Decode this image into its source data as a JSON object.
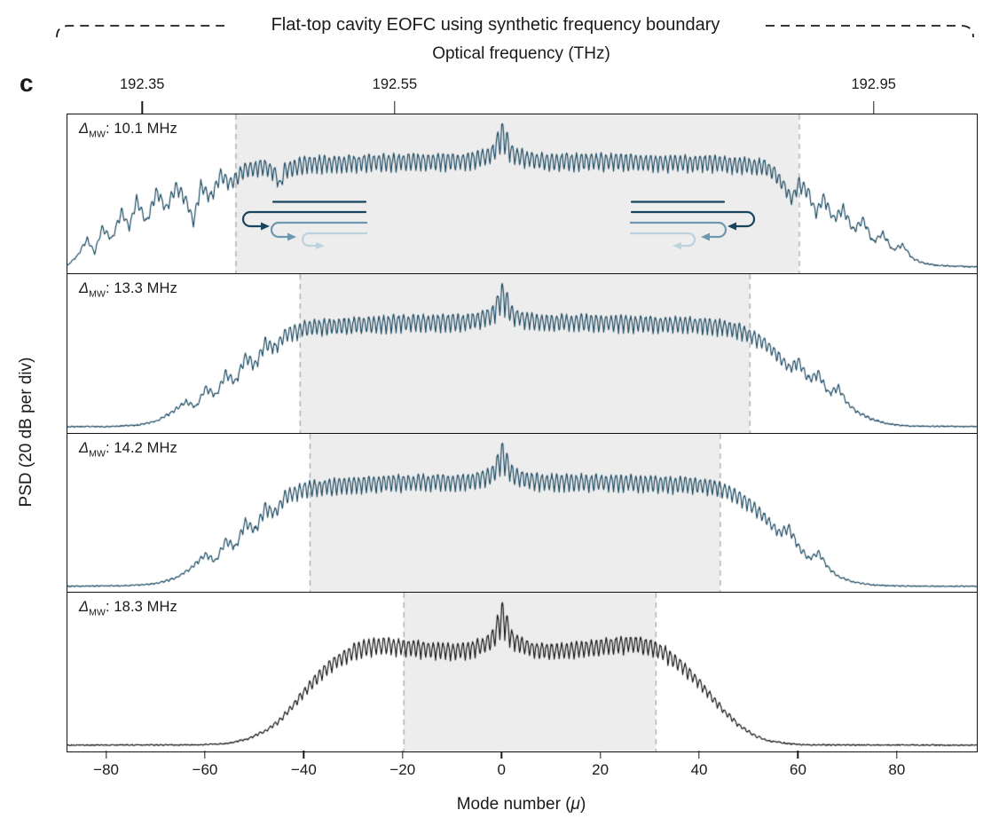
{
  "figure": {
    "panel_letter": "c",
    "brace_label": "Flat-top cavity EOFC using synthetic frequency boundary"
  },
  "chart_data": {
    "type": "line",
    "title": "Flat-top cavity EOFC using synthetic frequency boundary",
    "ylabel": "PSD (20 dB per div)",
    "xlabel": "Mode number (μ)",
    "xlabel_parts": {
      "prefix": "Mode number (",
      "symbol": "μ",
      "suffix": ")"
    },
    "x_range_mu": [
      -88,
      96
    ],
    "top_axis": {
      "label": "Optical frequency (THz)",
      "ticks": [
        {
          "label": "192.35",
          "mu": -72.7
        },
        {
          "label": "192.55",
          "mu": -21.6
        },
        {
          "label": "192.95",
          "mu": 75.3
        }
      ]
    },
    "bottom_axis": {
      "ticks": [
        {
          "label": "−80",
          "mu": -80
        },
        {
          "label": "−60",
          "mu": -60
        },
        {
          "label": "−40",
          "mu": -40
        },
        {
          "label": "−20",
          "mu": -20
        },
        {
          "label": "0",
          "mu": 0
        },
        {
          "label": "20",
          "mu": 20
        },
        {
          "label": "40",
          "mu": 40
        },
        {
          "label": "60",
          "mu": 60
        },
        {
          "label": "80",
          "mu": 80
        }
      ]
    },
    "panels": [
      {
        "label": "ΔMW: 10.1 MHz",
        "delta_symbol": "Δ",
        "delta_subscript": "MW",
        "label_separator": ": ",
        "delta_mw": "10.1 MHz",
        "color": "#17455e",
        "seed": 11,
        "ripple_depth": 0.14,
        "shaded_region_mu": [
          -54,
          60
        ],
        "center_peak": {
          "mu": 0,
          "height": 0.16,
          "sigma": 0.9,
          "pedestal_height": 0.05,
          "pedestal_sigma": 3
        },
        "envelope_points": [
          [
            -88,
            0.03
          ],
          [
            -86,
            0.1
          ],
          [
            -84,
            0.22
          ],
          [
            -82.5,
            0.12
          ],
          [
            -81,
            0.3
          ],
          [
            -79,
            0.22
          ],
          [
            -77,
            0.42
          ],
          [
            -75.5,
            0.3
          ],
          [
            -74,
            0.5
          ],
          [
            -72,
            0.34
          ],
          [
            -70,
            0.56
          ],
          [
            -68,
            0.44
          ],
          [
            -66,
            0.6
          ],
          [
            -64,
            0.5
          ],
          [
            -62.5,
            0.34
          ],
          [
            -61,
            0.6
          ],
          [
            -59,
            0.52
          ],
          [
            -57,
            0.68
          ],
          [
            -55,
            0.62
          ],
          [
            -52,
            0.72
          ],
          [
            -48,
            0.74
          ],
          [
            -46,
            0.7
          ],
          [
            -45,
            0.6
          ],
          [
            -44,
            0.72
          ],
          [
            -40,
            0.76
          ],
          [
            -30,
            0.77
          ],
          [
            -20,
            0.78
          ],
          [
            -10,
            0.78
          ],
          [
            0,
            0.79
          ],
          [
            10,
            0.78
          ],
          [
            20,
            0.78
          ],
          [
            30,
            0.77
          ],
          [
            40,
            0.77
          ],
          [
            46,
            0.76
          ],
          [
            50,
            0.75
          ],
          [
            53,
            0.74
          ],
          [
            55,
            0.7
          ],
          [
            57,
            0.6
          ],
          [
            58.5,
            0.5
          ],
          [
            60,
            0.62
          ],
          [
            62,
            0.55
          ],
          [
            63.5,
            0.4
          ],
          [
            65,
            0.52
          ],
          [
            67,
            0.36
          ],
          [
            69,
            0.44
          ],
          [
            71,
            0.28
          ],
          [
            73,
            0.36
          ],
          [
            75,
            0.2
          ],
          [
            77,
            0.26
          ],
          [
            79,
            0.14
          ],
          [
            81,
            0.18
          ],
          [
            83,
            0.08
          ],
          [
            85,
            0.05
          ],
          [
            88,
            0.03
          ],
          [
            96,
            0.02
          ]
        ]
      },
      {
        "label": "ΔMW: 13.3 MHz",
        "delta_symbol": "Δ",
        "delta_subscript": "MW",
        "label_separator": ": ",
        "delta_mw": "13.3 MHz",
        "color": "#17455e",
        "seed": 23,
        "ripple_depth": 0.14,
        "shaded_region_mu": [
          -41,
          50
        ],
        "center_peak": {
          "mu": 0,
          "height": 0.16,
          "sigma": 0.9,
          "pedestal_height": 0.05,
          "pedestal_sigma": 3
        },
        "envelope_points": [
          [
            -88,
            0.02
          ],
          [
            -80,
            0.02
          ],
          [
            -74,
            0.03
          ],
          [
            -70,
            0.06
          ],
          [
            -67,
            0.12
          ],
          [
            -64,
            0.2
          ],
          [
            -62,
            0.16
          ],
          [
            -60,
            0.3
          ],
          [
            -58,
            0.24
          ],
          [
            -56,
            0.4
          ],
          [
            -54,
            0.34
          ],
          [
            -52,
            0.52
          ],
          [
            -50,
            0.46
          ],
          [
            -48,
            0.62
          ],
          [
            -46,
            0.58
          ],
          [
            -44,
            0.68
          ],
          [
            -42,
            0.7
          ],
          [
            -40,
            0.73
          ],
          [
            -35,
            0.74
          ],
          [
            -30,
            0.75
          ],
          [
            -20,
            0.77
          ],
          [
            -10,
            0.77
          ],
          [
            0,
            0.78
          ],
          [
            10,
            0.77
          ],
          [
            20,
            0.77
          ],
          [
            30,
            0.76
          ],
          [
            40,
            0.75
          ],
          [
            44,
            0.74
          ],
          [
            47,
            0.72
          ],
          [
            50,
            0.68
          ],
          [
            53,
            0.62
          ],
          [
            56,
            0.52
          ],
          [
            58,
            0.44
          ],
          [
            60,
            0.48
          ],
          [
            62,
            0.36
          ],
          [
            64,
            0.4
          ],
          [
            66,
            0.26
          ],
          [
            68,
            0.3
          ],
          [
            70,
            0.18
          ],
          [
            72,
            0.12
          ],
          [
            75,
            0.07
          ],
          [
            78,
            0.04
          ],
          [
            82,
            0.025
          ],
          [
            96,
            0.02
          ]
        ]
      },
      {
        "label": "ΔMW: 14.2 MHz",
        "delta_symbol": "Δ",
        "delta_subscript": "MW",
        "label_separator": ": ",
        "delta_mw": "14.2 MHz",
        "color": "#17455e",
        "seed": 37,
        "ripple_depth": 0.14,
        "shaded_region_mu": [
          -39,
          44
        ],
        "center_peak": {
          "mu": 0,
          "height": 0.16,
          "sigma": 0.9,
          "pedestal_height": 0.05,
          "pedestal_sigma": 3
        },
        "envelope_points": [
          [
            -88,
            0.02
          ],
          [
            -76,
            0.025
          ],
          [
            -70,
            0.04
          ],
          [
            -66,
            0.08
          ],
          [
            -63,
            0.15
          ],
          [
            -60,
            0.25
          ],
          [
            -58,
            0.2
          ],
          [
            -56,
            0.35
          ],
          [
            -54,
            0.3
          ],
          [
            -52,
            0.48
          ],
          [
            -50,
            0.42
          ],
          [
            -48,
            0.58
          ],
          [
            -46,
            0.54
          ],
          [
            -44,
            0.66
          ],
          [
            -42,
            0.69
          ],
          [
            -40,
            0.72
          ],
          [
            -35,
            0.74
          ],
          [
            -30,
            0.75
          ],
          [
            -20,
            0.77
          ],
          [
            -10,
            0.77
          ],
          [
            0,
            0.78
          ],
          [
            10,
            0.77
          ],
          [
            20,
            0.77
          ],
          [
            30,
            0.76
          ],
          [
            38,
            0.75
          ],
          [
            42,
            0.74
          ],
          [
            45,
            0.71
          ],
          [
            48,
            0.66
          ],
          [
            51,
            0.58
          ],
          [
            54,
            0.48
          ],
          [
            56,
            0.4
          ],
          [
            58,
            0.44
          ],
          [
            60,
            0.3
          ],
          [
            62,
            0.22
          ],
          [
            64,
            0.26
          ],
          [
            66,
            0.15
          ],
          [
            68,
            0.09
          ],
          [
            71,
            0.05
          ],
          [
            75,
            0.03
          ],
          [
            80,
            0.022
          ],
          [
            96,
            0.02
          ]
        ]
      },
      {
        "label": "ΔMW: 18.3 MHz",
        "delta_symbol": "Δ",
        "delta_subscript": "MW",
        "label_separator": ": ",
        "delta_mw": "18.3 MHz",
        "color": "#101010",
        "seed": 49,
        "ripple_depth": 0.15,
        "shaded_region_mu": [
          -20,
          31
        ],
        "center_peak": {
          "mu": 0,
          "height": 0.19,
          "sigma": 0.9,
          "pedestal_height": 0.05,
          "pedestal_sigma": 3
        },
        "envelope_points": [
          [
            -88,
            0.02
          ],
          [
            -62,
            0.022
          ],
          [
            -56,
            0.03
          ],
          [
            -52,
            0.06
          ],
          [
            -48,
            0.12
          ],
          [
            -45,
            0.2
          ],
          [
            -42,
            0.32
          ],
          [
            -39,
            0.45
          ],
          [
            -36,
            0.56
          ],
          [
            -33,
            0.64
          ],
          [
            -30,
            0.7
          ],
          [
            -27,
            0.73
          ],
          [
            -24,
            0.74
          ],
          [
            -20,
            0.73
          ],
          [
            -15,
            0.71
          ],
          [
            -10,
            0.7
          ],
          [
            -6,
            0.71
          ],
          [
            -3,
            0.73
          ],
          [
            0,
            0.75
          ],
          [
            3,
            0.73
          ],
          [
            6,
            0.71
          ],
          [
            10,
            0.7
          ],
          [
            15,
            0.71
          ],
          [
            20,
            0.73
          ],
          [
            24,
            0.75
          ],
          [
            27,
            0.75
          ],
          [
            30,
            0.73
          ],
          [
            33,
            0.68
          ],
          [
            36,
            0.6
          ],
          [
            39,
            0.5
          ],
          [
            42,
            0.38
          ],
          [
            45,
            0.26
          ],
          [
            48,
            0.16
          ],
          [
            51,
            0.09
          ],
          [
            54,
            0.05
          ],
          [
            58,
            0.03
          ],
          [
            62,
            0.022
          ],
          [
            96,
            0.02
          ]
        ]
      }
    ]
  },
  "icons": {
    "recirculation_arrows": {
      "description": "nested U-turn arrows showing comb light folding back at the synthetic frequency boundary",
      "colors": [
        "#17455e",
        "#6e98b0",
        "#bdd2dd"
      ]
    }
  },
  "style": {
    "spectrum_teal": "#17455e",
    "spectrum_black": "#101010",
    "shade_fill": "#ededed",
    "shade_border": "#a9a9a9",
    "axis_color": "#1a1a1a"
  }
}
